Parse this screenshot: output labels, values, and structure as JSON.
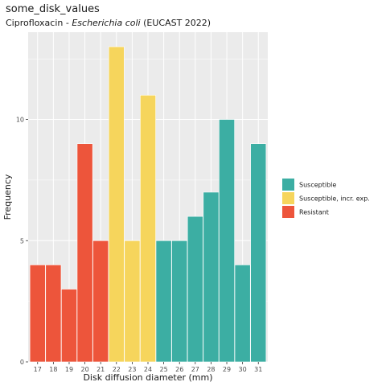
{
  "chart_data": {
    "type": "bar",
    "title": "some_disk_values",
    "subtitle_prefix": "Ciprofloxacin - ",
    "subtitle_italic": "Escherichia coli",
    "subtitle_suffix": " (EUCAST 2022)",
    "xlabel": "Disk diffusion diameter (mm)",
    "ylabel": "Frequency",
    "ylim": [
      0,
      13.6
    ],
    "yticks": [
      0,
      5,
      10
    ],
    "grid": true,
    "legend_position": "right",
    "categories": [
      "17",
      "18",
      "19",
      "20",
      "21",
      "22",
      "23",
      "24",
      "25",
      "26",
      "27",
      "28",
      "29",
      "30",
      "31"
    ],
    "values": [
      4,
      4,
      3,
      9,
      5,
      13,
      5,
      11,
      5,
      5,
      6,
      7,
      10,
      4,
      9
    ],
    "interpretation": [
      "R",
      "R",
      "R",
      "R",
      "R",
      "I",
      "I",
      "I",
      "S",
      "S",
      "S",
      "S",
      "S",
      "S",
      "S"
    ],
    "legend": [
      {
        "key": "S",
        "label": "Susceptible",
        "color": "#3CAEA3"
      },
      {
        "key": "I",
        "label": "Susceptible, incr. exp.",
        "color": "#F6D55C"
      },
      {
        "key": "R",
        "label": "Resistant",
        "color": "#ED553B"
      }
    ]
  }
}
